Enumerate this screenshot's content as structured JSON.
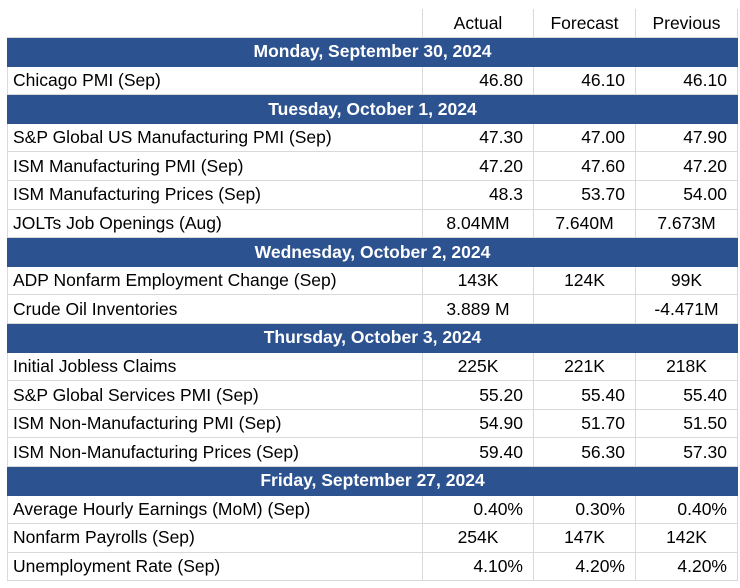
{
  "columns": {
    "actual": "Actual",
    "forecast": "Forecast",
    "previous": "Previous"
  },
  "sections": [
    {
      "date": "Monday, September 30, 2024",
      "rows": [
        {
          "name": "Chicago PMI (Sep)",
          "actual": "46.80",
          "forecast": "46.10",
          "previous": "46.10"
        }
      ]
    },
    {
      "date": "Tuesday, October 1, 2024",
      "rows": [
        {
          "name": "S&P Global US Manufacturing PMI (Sep)",
          "actual": "47.30",
          "forecast": "47.00",
          "previous": "47.90"
        },
        {
          "name": "ISM Manufacturing PMI (Sep)",
          "actual": "47.20",
          "forecast": "47.60",
          "previous": "47.20"
        },
        {
          "name": "ISM Manufacturing Prices (Sep)",
          "actual": "48.3",
          "forecast": "53.70",
          "previous": "54.00"
        },
        {
          "name": "JOLTs Job Openings (Aug)",
          "actual": "8.04MM",
          "forecast": "7.640M",
          "previous": "7.673M"
        }
      ]
    },
    {
      "date": "Wednesday, October 2, 2024",
      "rows": [
        {
          "name": "ADP Nonfarm Employment Change (Sep)",
          "actual": "143K",
          "forecast": "124K",
          "previous": "99K"
        },
        {
          "name": "Crude Oil Inventories",
          "actual": "3.889 M",
          "forecast": "",
          "previous": "-4.471M"
        }
      ]
    },
    {
      "date": "Thursday, October 3, 2024",
      "rows": [
        {
          "name": "Initial Jobless Claims",
          "actual": "225K",
          "forecast": "221K",
          "previous": "218K"
        },
        {
          "name": "S&P Global Services PMI (Sep)",
          "actual": "55.20",
          "forecast": "55.40",
          "previous": "55.40"
        },
        {
          "name": "ISM Non-Manufacturing PMI (Sep)",
          "actual": "54.90",
          "forecast": "51.70",
          "previous": "51.50"
        },
        {
          "name": "ISM Non-Manufacturing Prices (Sep)",
          "actual": "59.40",
          "forecast": "56.30",
          "previous": "57.30"
        }
      ]
    },
    {
      "date": "Friday, September 27, 2024",
      "rows": [
        {
          "name": "Average Hourly Earnings (MoM) (Sep)",
          "actual": "0.40%",
          "forecast": "0.30%",
          "previous": "0.40%"
        },
        {
          "name": "Nonfarm Payrolls (Sep)",
          "actual": "254K",
          "forecast": "147K",
          "previous": "142K"
        },
        {
          "name": "Unemployment Rate (Sep)",
          "actual": "4.10%",
          "forecast": "4.20%",
          "previous": "4.20%"
        }
      ]
    }
  ],
  "colors": {
    "header_band": "#2c5290",
    "header_text": "#ffffff",
    "grid": "#d9d9d9"
  }
}
